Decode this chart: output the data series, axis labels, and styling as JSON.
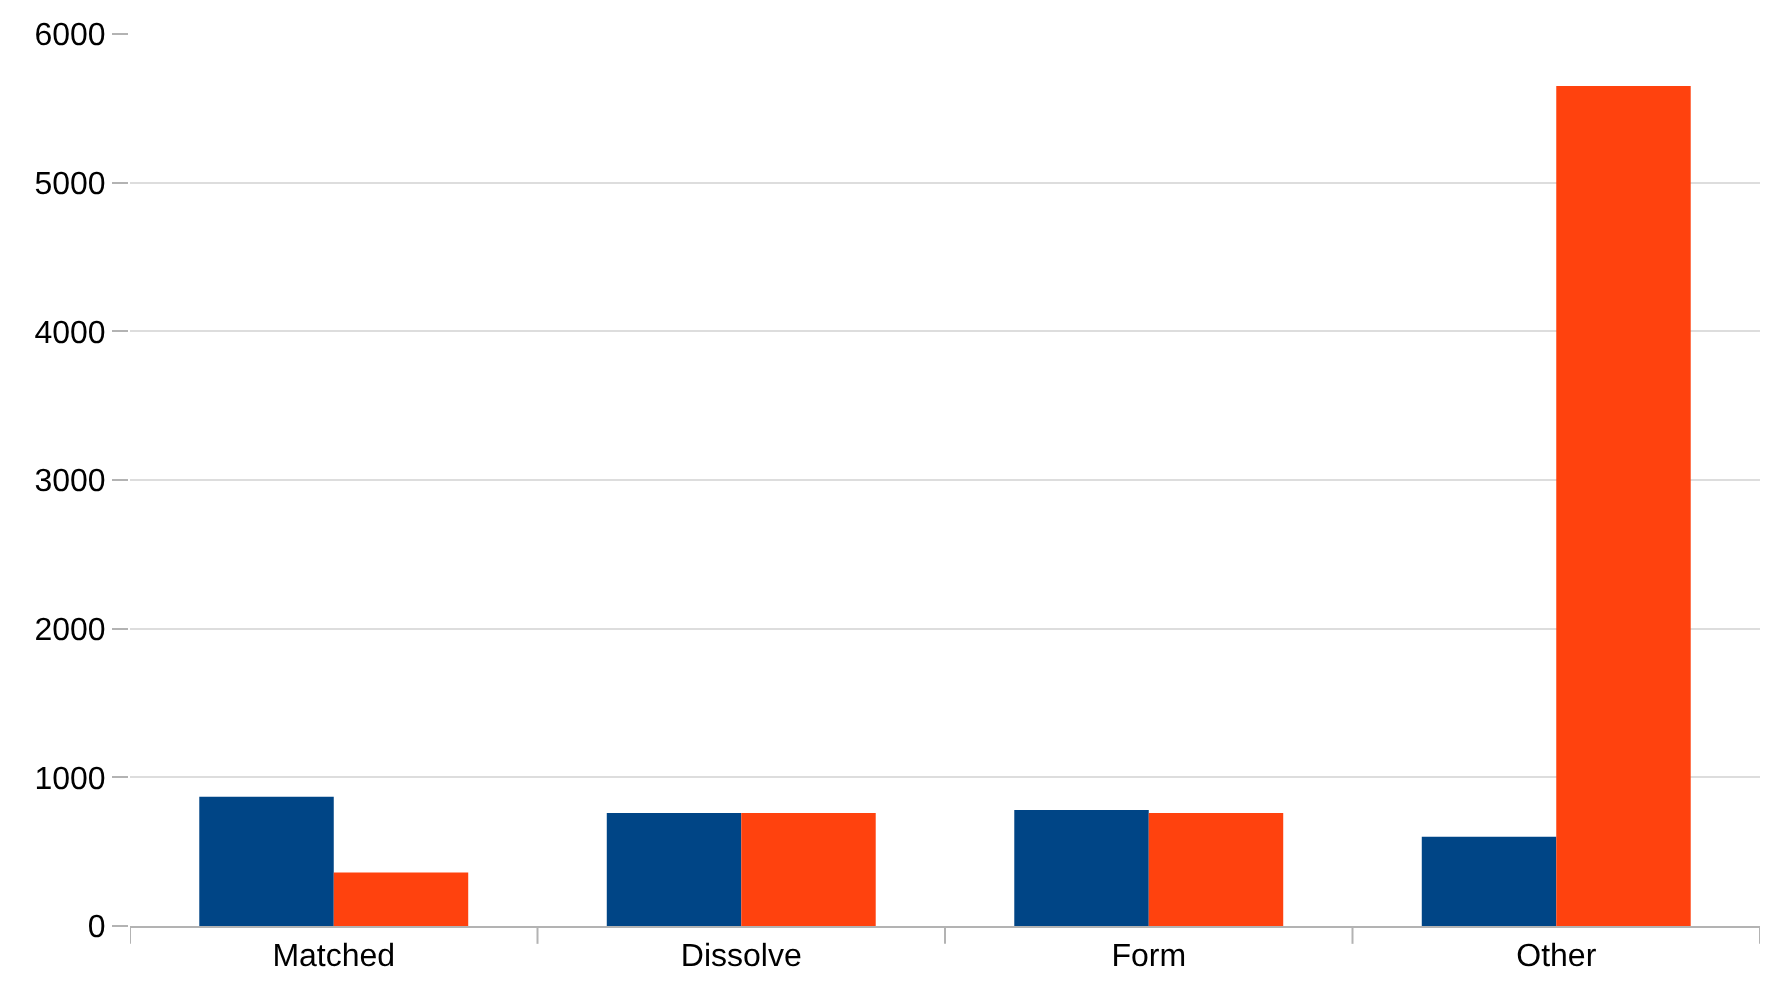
{
  "chart_data": {
    "type": "bar",
    "categories": [
      "Matched",
      "Dissolve",
      "Form",
      "Other"
    ],
    "series": [
      {
        "color": "#004586",
        "values": [
          870,
          760,
          780,
          600
        ]
      },
      {
        "color": "#ff420e",
        "values": [
          360,
          760,
          760,
          5650
        ]
      }
    ],
    "ylim": [
      0,
      6000
    ],
    "yticks": [
      0,
      1000,
      2000,
      3000,
      4000,
      5000,
      6000
    ],
    "grid": "y"
  }
}
